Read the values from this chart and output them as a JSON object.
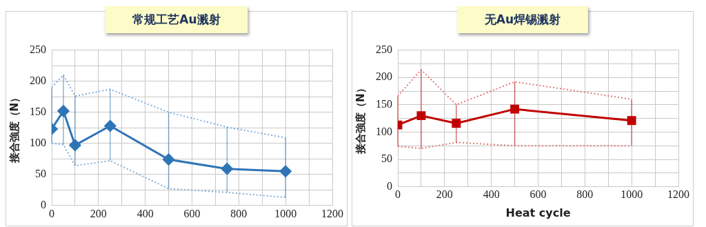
{
  "chart_data": [
    {
      "type": "line",
      "title": "常规工艺Au溅射",
      "ylabel": "接合強度（N）",
      "xlim": [
        0,
        1200
      ],
      "xticks": [
        0,
        {
          "value": 100,
          "label": null
        },
        200,
        {
          "value": 300,
          "label": null
        },
        400,
        {
          "value": 500,
          "label": null
        },
        600,
        {
          "value": 700,
          "label": null
        },
        800,
        {
          "value": 900,
          "label": null
        },
        1000,
        {
          "value": 1100,
          "label": null
        },
        1200
      ],
      "ylim": [
        0,
        250
      ],
      "yticks": [
        0,
        {
          "value": 25,
          "label": null
        },
        50,
        {
          "value": 75,
          "label": null
        },
        100,
        {
          "value": 125,
          "label": null
        },
        150,
        {
          "value": 175,
          "label": null
        },
        200,
        {
          "value": 225,
          "label": null
        },
        250
      ],
      "grid": true,
      "legend": false,
      "marker": "diamond",
      "line_style": "solid",
      "series": [
        {
          "color": "#2e75b6",
          "x": [
            0,
            50,
            100,
            250,
            500,
            750,
            1000
          ],
          "values": [
            123,
            152,
            97,
            128,
            74,
            59,
            55
          ],
          "errors": [
            [
              100,
              190
            ],
            [
              98,
              210
            ],
            [
              64,
              176
            ],
            [
              72,
              187
            ],
            [
              27,
              150
            ],
            [
              21,
              126
            ],
            [
              13,
              109
            ]
          ]
        },
        {
          "color": "#7eaedb",
          "line_style": "dotted",
          "marker": "none",
          "x": [
            0,
            50,
            100,
            250,
            500,
            750,
            1000
          ],
          "values": [
            190,
            210,
            176,
            187,
            150,
            126,
            109
          ]
        },
        {
          "color": "#7eaedb",
          "line_style": "dotted",
          "marker": "none",
          "x": [
            0,
            50,
            100,
            250,
            500,
            750,
            1000
          ],
          "values": [
            100,
            98,
            64,
            72,
            27,
            21,
            13
          ]
        }
      ]
    },
    {
      "type": "line",
      "title": "无Au焊锡溅射",
      "xlabel": "Heat cycle",
      "ylabel": "接合強度（N）",
      "xlim": [
        0,
        1200
      ],
      "xticks": [
        0,
        {
          "value": 100,
          "label": null
        },
        200,
        {
          "value": 300,
          "label": null
        },
        400,
        {
          "value": 500,
          "label": null
        },
        600,
        {
          "value": 700,
          "label": null
        },
        800,
        {
          "value": 900,
          "label": null
        },
        1000,
        {
          "value": 1100,
          "label": null
        },
        1200
      ],
      "ylim": [
        0,
        250
      ],
      "yticks": [
        0,
        {
          "value": 25,
          "label": null
        },
        50,
        {
          "value": 75,
          "label": null
        },
        100,
        {
          "value": 125,
          "label": null
        },
        150,
        {
          "value": 175,
          "label": null
        },
        200,
        {
          "value": 225,
          "label": null
        },
        250
      ],
      "grid": true,
      "legend": false,
      "marker": "square",
      "line_style": "solid",
      "series": [
        {
          "color": "#c00000",
          "x": [
            0,
            100,
            250,
            500,
            1000
          ],
          "values": [
            113,
            130,
            116,
            142,
            121
          ],
          "errors": [
            [
              74,
              166
            ],
            [
              70,
              214
            ],
            [
              81,
              150
            ],
            [
              75,
              192
            ],
            [
              75,
              160
            ]
          ]
        },
        {
          "color": "#e07a7a",
          "line_style": "dotted",
          "marker": "none",
          "x": [
            0,
            100,
            250,
            500,
            1000
          ],
          "values": [
            166,
            214,
            150,
            192,
            160
          ]
        },
        {
          "color": "#e07a7a",
          "line_style": "dotted",
          "marker": "none",
          "x": [
            0,
            100,
            250,
            500,
            1000
          ],
          "values": [
            74,
            70,
            81,
            75,
            75
          ]
        }
      ]
    }
  ]
}
